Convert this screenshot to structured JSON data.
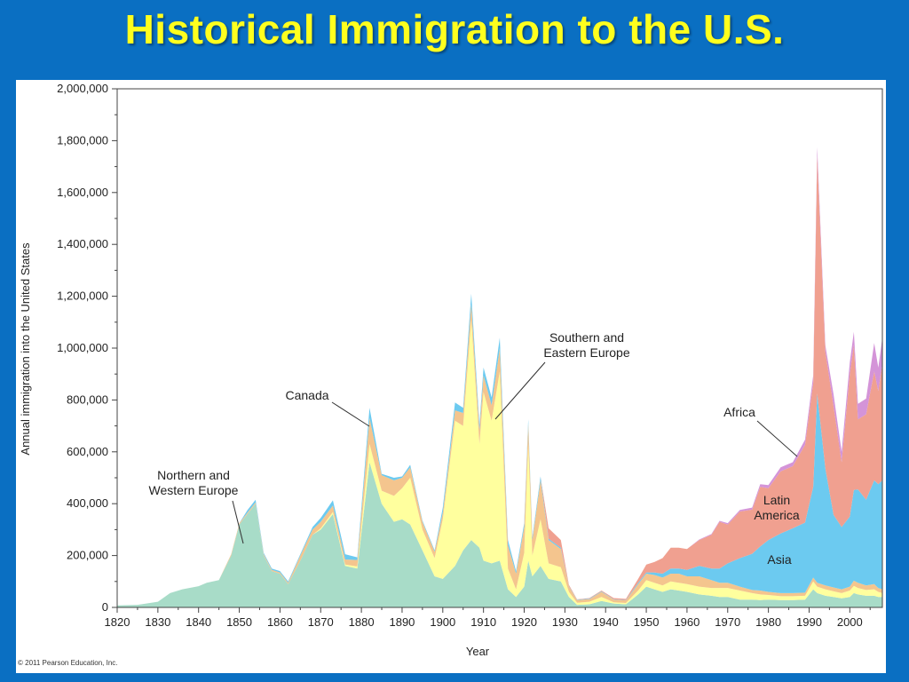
{
  "slide": {
    "title": "Historical Immigration to the U.S.",
    "copyright": "© 2011 Pearson Education, Inc.",
    "background_color": "#0a6fc2",
    "title_color": "#ffff1e"
  },
  "chart_data": {
    "type": "area",
    "stacked": true,
    "title": "",
    "xlabel": "Year",
    "ylabel": "Annual immigration into the United States",
    "xlim": [
      1820,
      2008
    ],
    "ylim": [
      0,
      2000000
    ],
    "x_ticks": [
      1820,
      1830,
      1840,
      1850,
      1860,
      1870,
      1880,
      1890,
      1900,
      1910,
      1920,
      1930,
      1940,
      1950,
      1960,
      1970,
      1980,
      1990,
      2000
    ],
    "y_ticks": [
      0,
      200000,
      400000,
      600000,
      800000,
      1000000,
      1200000,
      1400000,
      1600000,
      1800000,
      2000000
    ],
    "y_tick_labels": [
      "0",
      "200,000",
      "400,000",
      "600,000",
      "800,000",
      "1,000,000",
      "1,200,000",
      "1,400,000",
      "1,600,000",
      "1,800,000",
      "2,000,000"
    ],
    "grid": false,
    "legend": "none (series labeled by annotations)",
    "x": [
      1820,
      1825,
      1830,
      1833,
      1836,
      1840,
      1842,
      1845,
      1848,
      1850,
      1852,
      1854,
      1856,
      1858,
      1860,
      1862,
      1865,
      1868,
      1870,
      1873,
      1876,
      1879,
      1882,
      1885,
      1888,
      1890,
      1892,
      1895,
      1898,
      1900,
      1903,
      1905,
      1907,
      1909,
      1910,
      1912,
      1914,
      1916,
      1918,
      1920,
      1921,
      1922,
      1924,
      1926,
      1929,
      1931,
      1933,
      1936,
      1939,
      1942,
      1945,
      1948,
      1950,
      1952,
      1954,
      1956,
      1958,
      1960,
      1963,
      1966,
      1968,
      1970,
      1973,
      1976,
      1978,
      1980,
      1983,
      1986,
      1989,
      1991,
      1992,
      1994,
      1996,
      1998,
      2000,
      2001,
      2002,
      2004,
      2006,
      2007,
      2008
    ],
    "series": [
      {
        "name": "Northern and Western Europe",
        "color": "#a8dcc8",
        "values": [
          8000,
          10000,
          22000,
          55000,
          70000,
          82000,
          95000,
          105000,
          200000,
          320000,
          360000,
          400000,
          200000,
          140000,
          130000,
          90000,
          180000,
          280000,
          300000,
          360000,
          160000,
          150000,
          560000,
          400000,
          330000,
          340000,
          320000,
          220000,
          120000,
          110000,
          160000,
          220000,
          260000,
          230000,
          180000,
          170000,
          180000,
          70000,
          40000,
          80000,
          180000,
          120000,
          160000,
          110000,
          100000,
          40000,
          10000,
          12000,
          25000,
          15000,
          12000,
          50000,
          80000,
          70000,
          60000,
          70000,
          65000,
          60000,
          50000,
          45000,
          40000,
          40000,
          30000,
          30000,
          28000,
          30000,
          28000,
          28000,
          30000,
          70000,
          55000,
          45000,
          40000,
          35000,
          40000,
          55000,
          50000,
          45000,
          45000,
          40000,
          40000
        ]
      },
      {
        "name": "Southern and Eastern Europe",
        "color": "#ffff9e",
        "values": [
          0,
          0,
          0,
          0,
          0,
          0,
          0,
          0,
          0,
          0,
          0,
          0,
          0,
          0,
          0,
          0,
          0,
          0,
          5000,
          8000,
          5000,
          8000,
          70000,
          50000,
          100000,
          120000,
          180000,
          80000,
          70000,
          230000,
          560000,
          480000,
          850000,
          400000,
          650000,
          550000,
          730000,
          80000,
          30000,
          130000,
          450000,
          80000,
          180000,
          60000,
          55000,
          20000,
          8000,
          10000,
          15000,
          5000,
          5000,
          15000,
          25000,
          25000,
          25000,
          30000,
          30000,
          30000,
          30000,
          30000,
          35000,
          35000,
          35000,
          25000,
          22000,
          18000,
          15000,
          15000,
          15000,
          30000,
          25000,
          25000,
          22000,
          20000,
          25000,
          28000,
          25000,
          22000,
          25000,
          20000,
          15000
        ]
      },
      {
        "name": "Canada",
        "color": "#f4c58e",
        "values": [
          0,
          0,
          0,
          0,
          0,
          0,
          0,
          0,
          5000,
          5000,
          5000,
          5000,
          5000,
          5000,
          5000,
          5000,
          20000,
          20000,
          25000,
          25000,
          20000,
          25000,
          100000,
          60000,
          60000,
          40000,
          40000,
          30000,
          25000,
          25000,
          40000,
          50000,
          60000,
          55000,
          65000,
          60000,
          90000,
          90000,
          60000,
          100000,
          80000,
          60000,
          150000,
          90000,
          70000,
          20000,
          10000,
          10000,
          20000,
          10000,
          10000,
          25000,
          25000,
          30000,
          30000,
          30000,
          35000,
          30000,
          40000,
          30000,
          20000,
          20000,
          15000,
          12000,
          15000,
          12000,
          12000,
          12000,
          12000,
          15000,
          15000,
          15000,
          15000,
          15000,
          15000,
          20000,
          20000,
          18000,
          20000,
          15000,
          15000
        ]
      },
      {
        "name": "Asia",
        "color": "#6ccaf0",
        "values": [
          0,
          0,
          0,
          0,
          0,
          0,
          0,
          0,
          0,
          0,
          10000,
          10000,
          5000,
          5000,
          5000,
          5000,
          5000,
          10000,
          15000,
          20000,
          20000,
          10000,
          40000,
          5000,
          10000,
          5000,
          10000,
          5000,
          5000,
          20000,
          30000,
          20000,
          40000,
          20000,
          30000,
          30000,
          40000,
          20000,
          10000,
          15000,
          15000,
          10000,
          15000,
          5000,
          5000,
          2000,
          2000,
          2000,
          2000,
          1000,
          1000,
          5000,
          5000,
          10000,
          15000,
          20000,
          20000,
          25000,
          40000,
          45000,
          55000,
          75000,
          110000,
          140000,
          170000,
          200000,
          230000,
          250000,
          270000,
          350000,
          730000,
          450000,
          280000,
          240000,
          270000,
          350000,
          360000,
          330000,
          400000,
          400000,
          420000
        ]
      },
      {
        "name": "Latin America",
        "color": "#f0a090",
        "values": [
          0,
          0,
          0,
          0,
          0,
          0,
          0,
          0,
          0,
          0,
          0,
          0,
          0,
          0,
          0,
          0,
          0,
          0,
          0,
          0,
          0,
          0,
          0,
          0,
          0,
          0,
          0,
          0,
          0,
          0,
          0,
          0,
          0,
          0,
          0,
          0,
          0,
          0,
          0,
          0,
          0,
          0,
          0,
          40000,
          30000,
          5000,
          1000,
          2000,
          3000,
          5000,
          5000,
          15000,
          30000,
          40000,
          60000,
          80000,
          80000,
          80000,
          100000,
          130000,
          180000,
          150000,
          180000,
          170000,
          230000,
          200000,
          240000,
          240000,
          300000,
          400000,
          920000,
          450000,
          420000,
          250000,
          550000,
          560000,
          270000,
          330000,
          420000,
          360000,
          450000
        ]
      },
      {
        "name": "Africa",
        "color": "#d494d8",
        "values": [
          0,
          0,
          0,
          0,
          0,
          0,
          0,
          0,
          0,
          0,
          0,
          0,
          0,
          0,
          0,
          0,
          0,
          0,
          0,
          0,
          0,
          0,
          0,
          0,
          0,
          0,
          0,
          0,
          0,
          0,
          0,
          0,
          0,
          0,
          0,
          0,
          0,
          0,
          0,
          0,
          0,
          0,
          0,
          0,
          0,
          0,
          0,
          0,
          0,
          0,
          0,
          0,
          0,
          0,
          0,
          0,
          0,
          0,
          2000,
          3000,
          4000,
          5000,
          6000,
          8000,
          10000,
          12000,
          15000,
          15000,
          20000,
          30000,
          30000,
          25000,
          45000,
          40000,
          45000,
          50000,
          60000,
          60000,
          110000,
          90000,
          100000
        ]
      }
    ],
    "annotations": [
      {
        "label": "Northern and Western Europe",
        "lines": [
          "Northern and",
          "Western Europe"
        ]
      },
      {
        "label": "Canada",
        "lines": [
          "Canada"
        ]
      },
      {
        "label": "Southern and Eastern Europe",
        "lines": [
          "Southern and",
          "Eastern Europe"
        ]
      },
      {
        "label": "Africa",
        "lines": [
          "Africa"
        ]
      },
      {
        "label": "Latin America",
        "lines": [
          "Latin",
          "America"
        ]
      },
      {
        "label": "Asia",
        "lines": [
          "Asia"
        ]
      }
    ]
  }
}
